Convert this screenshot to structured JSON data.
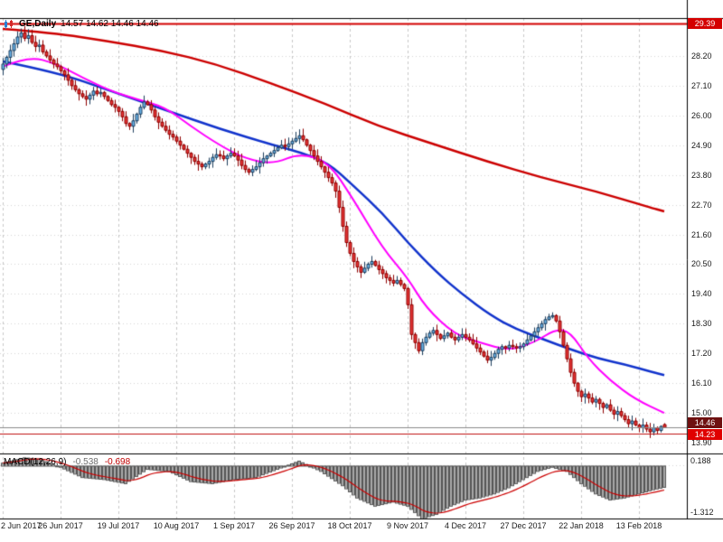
{
  "header": {
    "symbol": "GE,Daily",
    "ohlc_text": "14.57 14.62 14.46 14.46"
  },
  "price_axis": {
    "labels": [
      "28.20",
      "27.10",
      "26.00",
      "24.90",
      "23.80",
      "22.70",
      "21.60",
      "20.50",
      "19.40",
      "18.30",
      "17.20",
      "16.10",
      "15.00",
      "13.90"
    ],
    "resistance_badge": "29.39",
    "bid_badge": "14.46",
    "support_badge": "14.23"
  },
  "time_axis": {
    "labels": [
      "2 Jun 2017",
      "26 Jun 2017",
      "19 Jul 2017",
      "10 Aug 2017",
      "1 Sep 2017",
      "26 Sep 2017",
      "18 Oct 2017",
      "9 Nov 2017",
      "4 Dec 2017",
      "27 Dec 2017",
      "22 Jan 2018",
      "13 Feb 2018"
    ]
  },
  "macd_panel": {
    "label": "MACD(12,26,9)",
    "main_value": "-0.538",
    "signal_value": "-0.698",
    "axis_max": "0.188",
    "axis_min": "-1.312"
  },
  "chart_data": {
    "type": "candlestick",
    "symbol": "GE",
    "timeframe": "Daily",
    "current_ohlc": {
      "open": 14.57,
      "high": 14.62,
      "low": 14.46,
      "close": 14.46
    },
    "y_range": [
      13.5,
      29.6
    ],
    "y_ticks": [
      28.2,
      27.1,
      26.0,
      24.9,
      23.8,
      22.7,
      21.6,
      20.5,
      19.4,
      18.3,
      17.2,
      16.1,
      15.0,
      13.9
    ],
    "bar_spacing": 4,
    "first_open": 27.7,
    "tick_bars": [
      0,
      16,
      32,
      48,
      64,
      80,
      96,
      112,
      128,
      144,
      160,
      176
    ],
    "tick_labels": [
      "2 Jun 2017",
      "26 Jun 2017",
      "19 Jul 2017",
      "10 Aug 2017",
      "1 Sep 2017",
      "26 Sep 2017",
      "18 Oct 2017",
      "9 Nov 2017",
      "4 Dec 2017",
      "27 Dec 2017",
      "22 Jan 2018",
      "13 Feb 2018"
    ],
    "horizontal_levels": [
      {
        "price": 29.39,
        "color": "#d40000",
        "width": 2
      },
      {
        "price": 14.46,
        "color": "#8a8a8a",
        "width": 1
      },
      {
        "price": 14.23,
        "color": "#c01212",
        "width": 1
      }
    ],
    "daily_closes": [
      27.9,
      28.15,
      28.4,
      28.65,
      28.9,
      29.05,
      28.85,
      28.95,
      28.7,
      28.55,
      28.6,
      28.35,
      28.2,
      28.05,
      27.9,
      27.8,
      27.65,
      27.5,
      27.3,
      27.1,
      26.95,
      26.8,
      26.7,
      26.6,
      26.75,
      26.9,
      26.8,
      26.85,
      26.7,
      26.55,
      26.4,
      26.3,
      26.15,
      25.95,
      25.7,
      25.6,
      25.8,
      26.05,
      26.3,
      26.5,
      26.4,
      26.2,
      25.95,
      25.75,
      25.6,
      25.45,
      25.3,
      25.2,
      25.05,
      24.9,
      24.75,
      24.6,
      24.45,
      24.3,
      24.2,
      24.1,
      24.2,
      24.3,
      24.45,
      24.55,
      24.5,
      24.4,
      24.5,
      24.6,
      24.5,
      24.35,
      24.15,
      24.0,
      23.9,
      24.0,
      24.1,
      24.25,
      24.4,
      24.5,
      24.6,
      24.7,
      24.8,
      24.9,
      24.85,
      24.95,
      25.05,
      25.15,
      25.25,
      25.1,
      24.9,
      24.7,
      24.5,
      24.3,
      24.1,
      23.9,
      23.7,
      23.5,
      23.2,
      22.6,
      21.9,
      21.3,
      20.9,
      20.6,
      20.4,
      20.2,
      20.35,
      20.5,
      20.6,
      20.45,
      20.3,
      20.15,
      20.0,
      19.9,
      19.8,
      19.9,
      19.75,
      19.6,
      19.0,
      17.9,
      17.6,
      17.3,
      17.6,
      17.8,
      17.95,
      18.05,
      17.9,
      17.75,
      17.85,
      17.95,
      17.8,
      17.7,
      17.8,
      17.9,
      17.8,
      17.7,
      17.55,
      17.4,
      17.25,
      17.1,
      16.95,
      17.05,
      17.2,
      17.35,
      17.45,
      17.4,
      17.5,
      17.45,
      17.4,
      17.45,
      17.55,
      17.7,
      17.85,
      18.0,
      18.15,
      18.3,
      18.45,
      18.55,
      18.6,
      18.4,
      18.0,
      17.5,
      17.0,
      16.5,
      16.1,
      15.8,
      15.6,
      15.7,
      15.55,
      15.4,
      15.5,
      15.35,
      15.2,
      15.3,
      15.1,
      14.95,
      15.05,
      14.9,
      14.75,
      14.6,
      14.7,
      14.55,
      14.45,
      14.55,
      14.4,
      14.3,
      14.45,
      14.35,
      14.5,
      14.46
    ],
    "moving_averages": [
      {
        "name": "slow-ma",
        "color": "#cc0000",
        "width": 2.5,
        "anchors": [
          [
            0,
            29.2
          ],
          [
            14,
            29.05
          ],
          [
            29,
            28.75
          ],
          [
            44,
            28.4
          ],
          [
            59,
            27.9
          ],
          [
            74,
            27.2
          ],
          [
            89,
            26.45
          ],
          [
            104,
            25.6
          ],
          [
            119,
            24.95
          ],
          [
            134,
            24.3
          ],
          [
            149,
            23.7
          ],
          [
            164,
            23.2
          ],
          [
            179,
            22.6
          ],
          [
            183,
            22.45
          ]
        ]
      },
      {
        "name": "mid-ma",
        "color": "#1133cc",
        "width": 2.5,
        "anchors": [
          [
            0,
            28.0
          ],
          [
            15,
            27.6
          ],
          [
            30,
            26.9
          ],
          [
            45,
            26.2
          ],
          [
            60,
            25.5
          ],
          [
            75,
            24.9
          ],
          [
            82,
            24.65
          ],
          [
            90,
            24.25
          ],
          [
            97,
            23.4
          ],
          [
            105,
            22.4
          ],
          [
            112,
            21.3
          ],
          [
            120,
            20.2
          ],
          [
            127,
            19.4
          ],
          [
            135,
            18.6
          ],
          [
            142,
            18.1
          ],
          [
            150,
            17.7
          ],
          [
            157,
            17.35
          ],
          [
            165,
            17.0
          ],
          [
            172,
            16.8
          ],
          [
            180,
            16.5
          ],
          [
            183,
            16.4
          ]
        ]
      },
      {
        "name": "fast-ma",
        "color": "#ff00ff",
        "width": 2,
        "anchors": [
          [
            0,
            27.8
          ],
          [
            7,
            28.2
          ],
          [
            15,
            27.9
          ],
          [
            22,
            27.4
          ],
          [
            30,
            26.9
          ],
          [
            37,
            26.6
          ],
          [
            45,
            26.3
          ],
          [
            52,
            25.6
          ],
          [
            60,
            24.9
          ],
          [
            67,
            24.4
          ],
          [
            75,
            24.2
          ],
          [
            82,
            24.6
          ],
          [
            90,
            24.3
          ],
          [
            97,
            22.9
          ],
          [
            105,
            21.1
          ],
          [
            112,
            20.0
          ],
          [
            117,
            18.9
          ],
          [
            125,
            17.9
          ],
          [
            132,
            17.6
          ],
          [
            140,
            17.3
          ],
          [
            147,
            17.6
          ],
          [
            153,
            18.1
          ],
          [
            157,
            18.0
          ],
          [
            162,
            17.0
          ],
          [
            168,
            16.2
          ],
          [
            175,
            15.5
          ],
          [
            183,
            15.0
          ]
        ]
      }
    ],
    "macd": {
      "range": [
        -1.312,
        0.188
      ],
      "histogram_color": "#a8a8a8",
      "histogram_border": "#555555",
      "signal_color": "#cc0000",
      "anchors": [
        [
          0,
          0.05
        ],
        [
          6,
          0.18
        ],
        [
          10,
          0.15
        ],
        [
          16,
          -0.05
        ],
        [
          22,
          -0.3
        ],
        [
          28,
          -0.35
        ],
        [
          34,
          -0.45
        ],
        [
          40,
          -0.1
        ],
        [
          46,
          -0.15
        ],
        [
          52,
          -0.4
        ],
        [
          58,
          -0.45
        ],
        [
          64,
          -0.35
        ],
        [
          70,
          -0.3
        ],
        [
          76,
          -0.1
        ],
        [
          82,
          0.1
        ],
        [
          88,
          -0.15
        ],
        [
          94,
          -0.5
        ],
        [
          98,
          -0.8
        ],
        [
          103,
          -1.0
        ],
        [
          108,
          -0.9
        ],
        [
          112,
          -1.0
        ],
        [
          116,
          -1.31
        ],
        [
          120,
          -1.2
        ],
        [
          124,
          -1.0
        ],
        [
          128,
          -0.85
        ],
        [
          132,
          -0.8
        ],
        [
          136,
          -0.7
        ],
        [
          140,
          -0.55
        ],
        [
          144,
          -0.35
        ],
        [
          148,
          -0.15
        ],
        [
          152,
          -0.05
        ],
        [
          156,
          -0.15
        ],
        [
          160,
          -0.45
        ],
        [
          164,
          -0.7
        ],
        [
          168,
          -0.85
        ],
        [
          172,
          -0.8
        ],
        [
          176,
          -0.7
        ],
        [
          180,
          -0.6
        ],
        [
          183,
          -0.54
        ]
      ]
    },
    "colors": {
      "up_fill": "#6ab4ea",
      "up_border": "#1c3d5c",
      "down_fill": "#e63535",
      "down_border": "#8f0000",
      "grid": "#c8c8c8",
      "border": "#000000",
      "background": "#ffffff"
    }
  }
}
